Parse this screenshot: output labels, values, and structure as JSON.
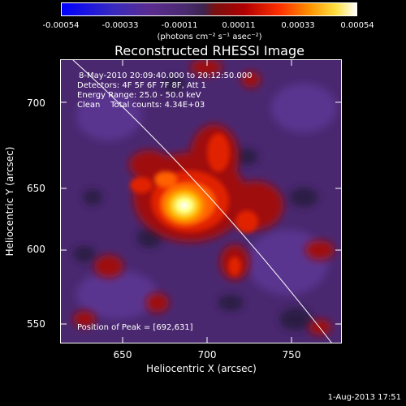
{
  "colorbar": {
    "ticks": [
      "-0.00054",
      "-0.00033",
      "-0.00011",
      "0.00011",
      "0.00033",
      "0.00054"
    ],
    "units": "(photons cm⁻² s⁻¹ asec⁻²)"
  },
  "title": "Reconstructed RHESSI Image",
  "annotations": {
    "time_range": "8-May-2010 20:09:40.000 to 20:12:50.000",
    "detectors": "Detectors: 4F 5F 6F 7F 8F, Att 1",
    "energy_range": "Energy Range: 25.0 - 50.0 keV",
    "method": "Clean    Total counts: 4.34E+03",
    "peak_position": "Position of Peak = [692,631]"
  },
  "axes": {
    "xlabel": "Heliocentric X (arcsec)",
    "ylabel": "Heliocentric Y (arcsec)",
    "x_ticks": [
      "650",
      "700",
      "750"
    ],
    "y_ticks": [
      "700",
      "650",
      "600",
      "550"
    ]
  },
  "datestamp": "1-Aug-2013 17:51",
  "colors": {
    "background": "#000000",
    "foreground": "#ffffff",
    "image_background": "#4a2870"
  }
}
